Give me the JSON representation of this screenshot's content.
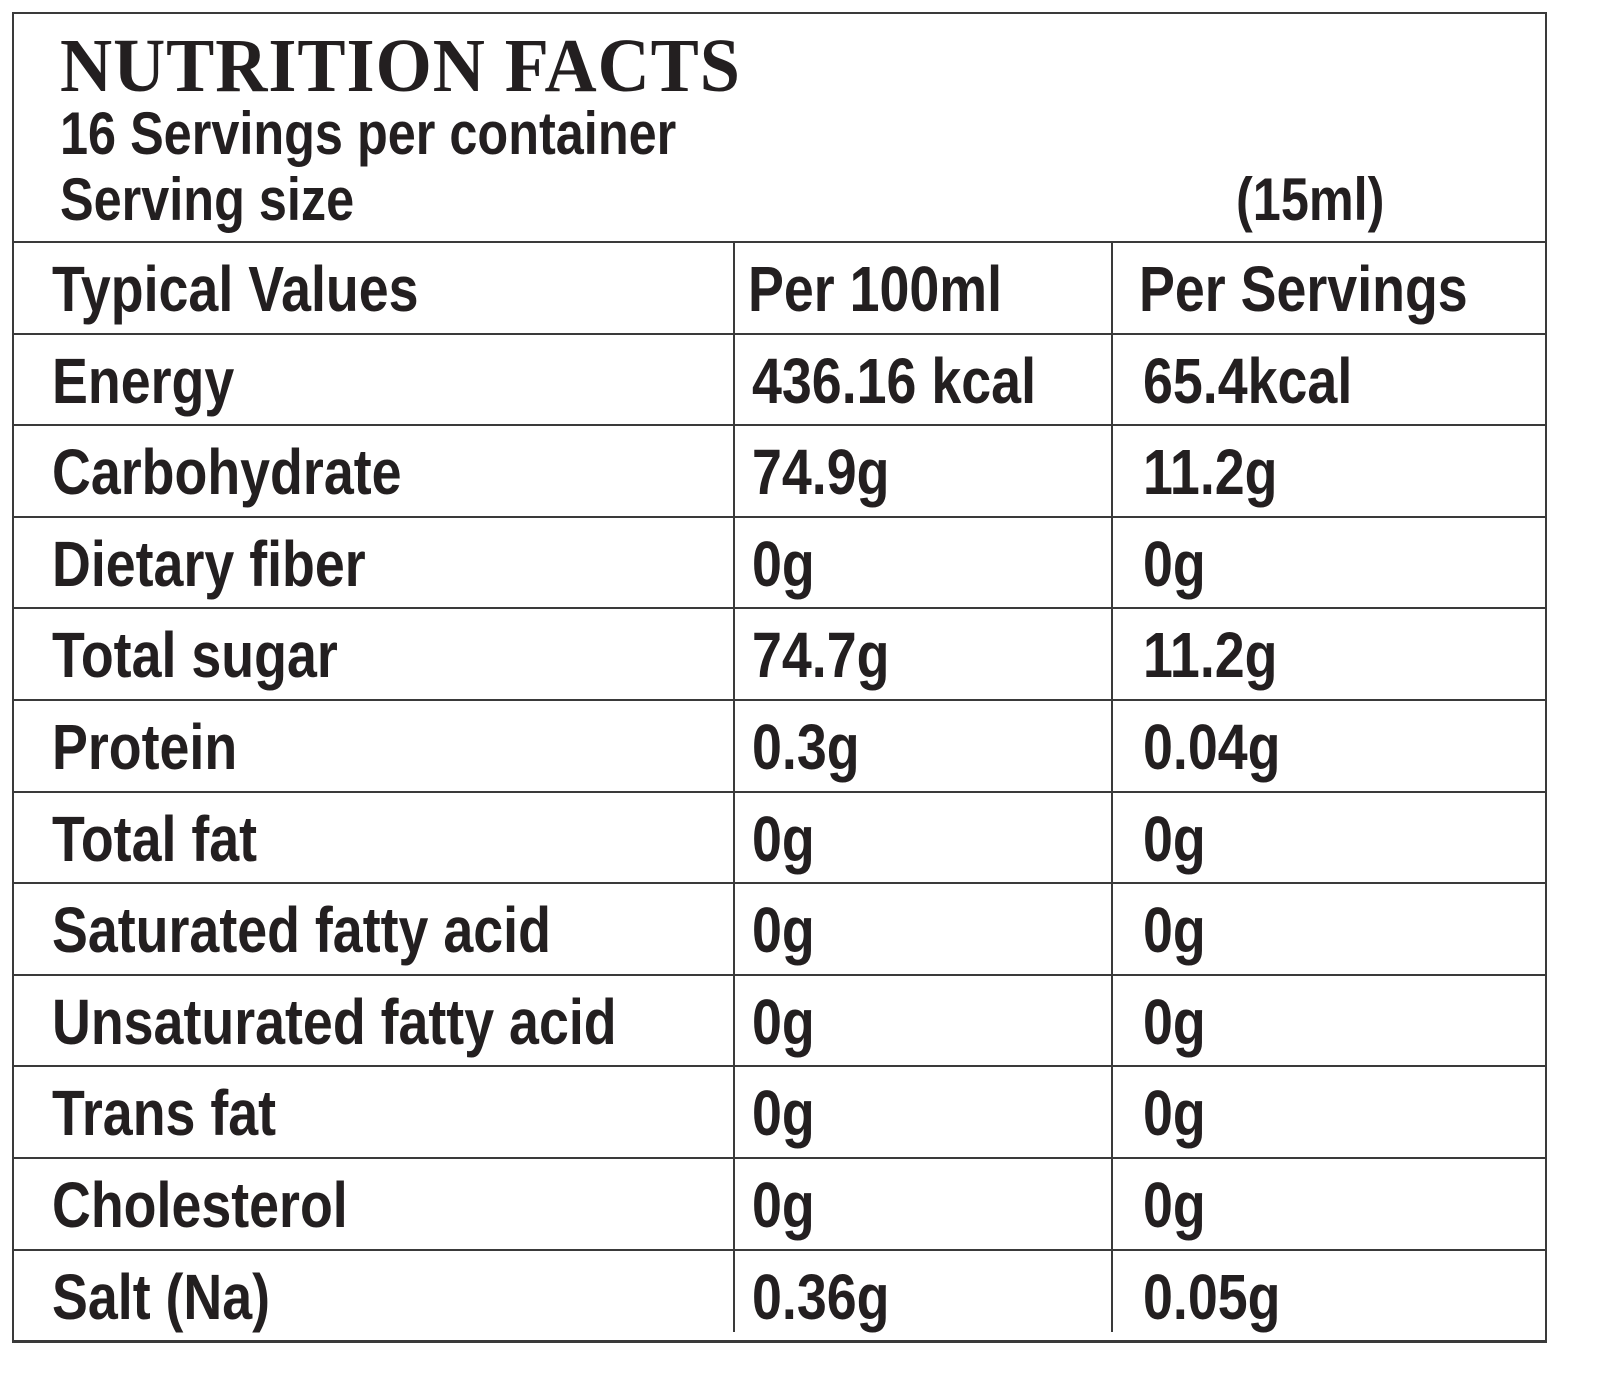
{
  "header": {
    "title": "NUTRITION FACTS",
    "servings": "16 Servings per container",
    "serving_size_label": "Serving size",
    "serving_size_value": "(15ml)"
  },
  "table": {
    "columns": [
      "Typical Values",
      "Per 100ml",
      "Per Servings"
    ],
    "rows": [
      [
        "Energy",
        "436.16 kcal",
        "65.4kcal"
      ],
      [
        "Carbohydrate",
        "74.9g",
        "11.2g"
      ],
      [
        "Dietary fiber",
        "0g",
        "0g"
      ],
      [
        "Total sugar",
        "74.7g",
        "11.2g"
      ],
      [
        "Protein",
        "0.3g",
        "0.04g"
      ],
      [
        "Total fat",
        "0g",
        "0g"
      ],
      [
        "Saturated fatty acid",
        "0g",
        "0g"
      ],
      [
        "Unsaturated fatty acid",
        "0g",
        "0g"
      ],
      [
        "Trans fat",
        "0g",
        "0g"
      ],
      [
        "Cholesterol",
        "0g",
        "0g"
      ],
      [
        "Salt (Na)",
        "0.36g",
        "0.05g"
      ]
    ]
  }
}
